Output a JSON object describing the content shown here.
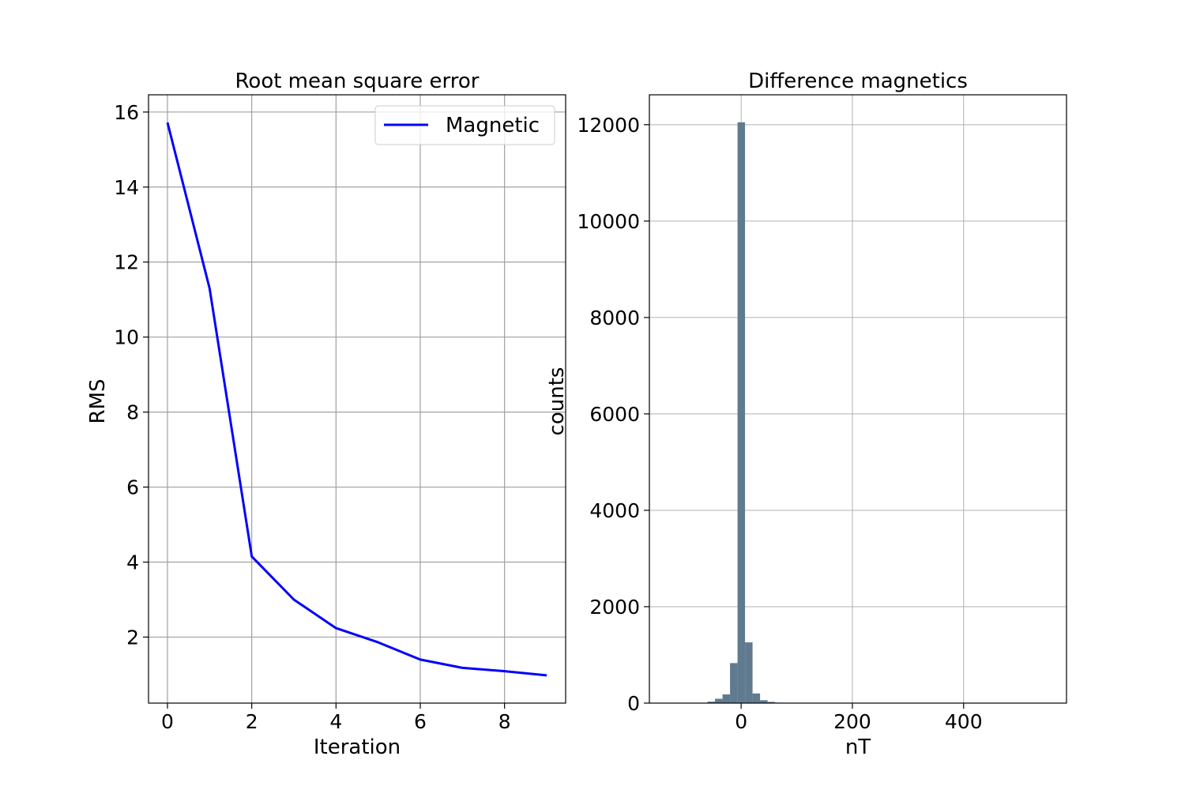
{
  "chart_data": [
    {
      "type": "line",
      "title": "Root mean square error",
      "xlabel": "Iteration",
      "ylabel": "RMS",
      "xlim": [
        -0.45,
        9.45
      ],
      "ylim": [
        0.24,
        16.46
      ],
      "xticks": [
        0,
        2,
        4,
        6,
        8
      ],
      "yticks": [
        2,
        4,
        6,
        8,
        10,
        12,
        14,
        16
      ],
      "grid": true,
      "legend_position": "upper right",
      "series": [
        {
          "name": "Magnetic",
          "color": "#0000ff",
          "x": [
            0,
            1,
            2,
            3,
            4,
            5,
            6,
            7,
            8,
            9
          ],
          "y": [
            15.72,
            11.3,
            4.15,
            3.0,
            2.24,
            1.86,
            1.4,
            1.18,
            1.09,
            0.98
          ]
        }
      ]
    },
    {
      "type": "bar",
      "subtype": "histogram",
      "title": "Difference magnetics",
      "xlabel": "nT",
      "ylabel": "counts",
      "xlim": [
        -165,
        585
      ],
      "ylim": [
        0,
        12620
      ],
      "xticks": [
        0,
        200,
        400
      ],
      "yticks": [
        0,
        2000,
        4000,
        6000,
        8000,
        10000,
        12000
      ],
      "grid": true,
      "bar_color": "#607b8f",
      "bin_width": 13.5,
      "bins": [
        {
          "x0": -60.5,
          "count": 30
        },
        {
          "x0": -47.0,
          "count": 90
        },
        {
          "x0": -33.5,
          "count": 180
        },
        {
          "x0": -20.0,
          "count": 830
        },
        {
          "x0": -6.5,
          "count": 12050
        },
        {
          "x0": 7.0,
          "count": 1260
        },
        {
          "x0": 20.5,
          "count": 200
        },
        {
          "x0": 34.0,
          "count": 60
        },
        {
          "x0": 47.5,
          "count": 25
        },
        {
          "x0": 61.0,
          "count": 10
        }
      ]
    }
  ]
}
